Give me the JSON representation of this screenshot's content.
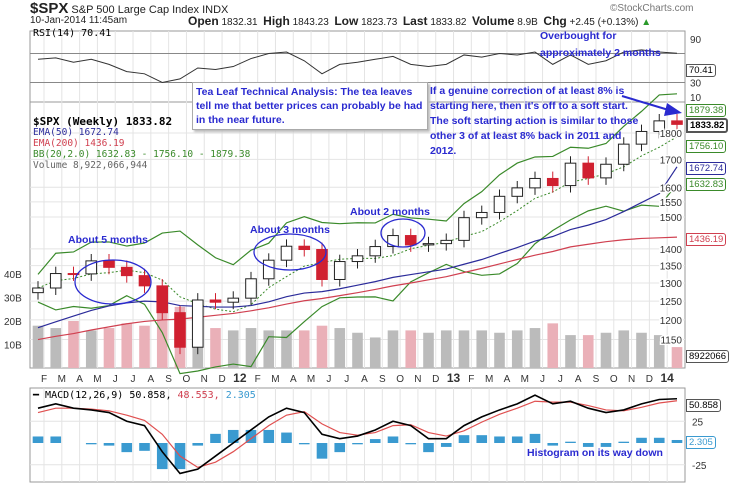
{
  "header": {
    "symbol": "$SPX",
    "name": "S&P 500 Large Cap Index",
    "exchange": "INDX",
    "brand": "©StockCharts.com",
    "date": "10-Jan-2014 11:45am",
    "open_label": "Open",
    "open": "1832.31",
    "high_label": "High",
    "high": "1843.23",
    "low_label": "Low",
    "low": "1823.73",
    "last_label": "Last",
    "last": "1833.82",
    "volume_label": "Volume",
    "volume": "8.9B",
    "chg_label": "Chg",
    "chg": "+2.45 (+0.13%)"
  },
  "rsi": {
    "legend": "RSI(14) 70.41",
    "last_tag": "70.41",
    "annotation_line1": "Overbought for",
    "annotation_line2": "approximately 2 months"
  },
  "price_legend": {
    "main": "$SPX (Weekly) 1833.82",
    "ema50": "EMA(50) 1672.74",
    "ema200": "EMA(200) 1436.19",
    "bb": "BB(20,2.0) 1632.83 - 1756.10 - 1879.38",
    "volume": "Volume 8,922,066,944"
  },
  "tags": {
    "bb_upper": "1879.38",
    "last": "1833.82",
    "bb_mid": "1756.10",
    "ema50": "1672.74",
    "bb_lower": "1632.83",
    "ema200": "1436.19",
    "volume": "8922066",
    "macd": "50.858",
    "hist": "2.305"
  },
  "annotations": {
    "tea_leaf": "Tea Leaf Technical Analysis:  The tea leaves tell me that better prices can probably be had in the near future.",
    "correction": "If a genuine correction of at least 8% is starting here, then it's off to a soft start. The soft starting action is similar to those other 3 of at least 8% back in 2011 and 2012.",
    "m5": "About 5 months",
    "m3": "About 3 months",
    "m2": "About 2 months",
    "histogram": "Histogram on its way down"
  },
  "macd": {
    "legend_a": "MACD(12,26,9) 50.858,",
    "legend_b": "48.553,",
    "legend_c": "2.305"
  },
  "colors": {
    "ema50": "#2b2b9a",
    "ema200": "#d04050",
    "bb": "#3a8a2a",
    "up": "#222",
    "down": "#d02030",
    "macd": "#000",
    "signal": "#e05050",
    "hist": "#3a9ad0",
    "annotation": "#2a2ad0"
  },
  "chart_data": {
    "type": "candlestick",
    "scale": "log",
    "grid": true,
    "x_tick_labels": [
      "F",
      "M",
      "A",
      "M",
      "J",
      "J",
      "A",
      "S",
      "O",
      "N",
      "D",
      "12",
      "F",
      "M",
      "A",
      "M",
      "J",
      "J",
      "A",
      "S",
      "O",
      "N",
      "D",
      "13",
      "F",
      "M",
      "A",
      "M",
      "J",
      "J",
      "A",
      "S",
      "O",
      "N",
      "D",
      "14"
    ],
    "price_axis_ticks": [
      1800,
      1700,
      1600,
      1550,
      1500,
      1400,
      1350,
      1300,
      1250,
      1200,
      1150
    ],
    "rsi_axis_ticks": [
      90,
      30,
      10
    ],
    "volume_axis_ticks": [
      "40B",
      "30B",
      "20B",
      "10B"
    ],
    "macd_axis_ticks": [
      25,
      -25
    ],
    "dates": [
      "2011-01",
      "2011-02",
      "2011-03",
      "2011-04",
      "2011-05",
      "2011-06",
      "2011-07",
      "2011-08",
      "2011-09",
      "2011-10",
      "2011-11",
      "2011-12",
      "2012-01",
      "2012-02",
      "2012-03",
      "2012-04",
      "2012-05",
      "2012-06",
      "2012-07",
      "2012-08",
      "2012-09",
      "2012-10",
      "2012-11",
      "2012-12",
      "2013-01",
      "2013-02",
      "2013-03",
      "2013-04",
      "2013-05",
      "2013-06",
      "2013-07",
      "2013-08",
      "2013-09",
      "2013-10",
      "2013-11",
      "2013-12",
      "2014-01"
    ],
    "close": [
      1286,
      1327,
      1326,
      1364,
      1345,
      1321,
      1292,
      1219,
      1131,
      1253,
      1247,
      1258,
      1312,
      1366,
      1408,
      1398,
      1310,
      1362,
      1379,
      1407,
      1441,
      1412,
      1416,
      1426,
      1498,
      1515,
      1569,
      1598,
      1631,
      1606,
      1686,
      1633,
      1682,
      1757,
      1806,
      1848,
      1834
    ],
    "ema50": [
      1180,
      1195,
      1210,
      1225,
      1237,
      1245,
      1250,
      1248,
      1238,
      1236,
      1234,
      1234,
      1238,
      1248,
      1262,
      1272,
      1276,
      1284,
      1294,
      1304,
      1316,
      1324,
      1332,
      1340,
      1354,
      1368,
      1386,
      1404,
      1424,
      1438,
      1460,
      1474,
      1492,
      1518,
      1548,
      1578,
      1672.74
    ],
    "ema200": [
      1150,
      1158,
      1165,
      1174,
      1182,
      1190,
      1196,
      1200,
      1202,
      1207,
      1212,
      1217,
      1224,
      1232,
      1242,
      1251,
      1257,
      1265,
      1273,
      1282,
      1292,
      1300,
      1309,
      1318,
      1330,
      1342,
      1355,
      1368,
      1381,
      1392,
      1406,
      1414,
      1422,
      1428,
      1432,
      1434,
      1436.19
    ],
    "volume_b": [
      18,
      17,
      20,
      16,
      17,
      19,
      18,
      30,
      26,
      22,
      17,
      16,
      17,
      16,
      16,
      16,
      18,
      17,
      15,
      13,
      16,
      16,
      15,
      16,
      16,
      16,
      15,
      16,
      17,
      19,
      14,
      14,
      15,
      16,
      15,
      14,
      8.9
    ],
    "rsi": [
      62,
      64,
      58,
      62,
      55,
      45,
      42,
      30,
      35,
      50,
      48,
      52,
      63,
      70,
      72,
      60,
      42,
      55,
      58,
      62,
      66,
      55,
      52,
      55,
      68,
      65,
      70,
      68,
      72,
      55,
      68,
      55,
      60,
      72,
      75,
      72,
      70.41
    ],
    "macd": [
      40,
      45,
      40,
      38,
      35,
      25,
      20,
      -10,
      -35,
      -30,
      -15,
      0,
      15,
      30,
      40,
      35,
      10,
      5,
      8,
      15,
      25,
      20,
      5,
      5,
      20,
      30,
      38,
      45,
      55,
      45,
      48,
      40,
      35,
      38,
      45,
      50,
      50.858
    ],
    "signal": [
      35,
      40,
      40,
      39,
      37,
      32,
      26,
      10,
      -15,
      -28,
      -22,
      -10,
      5,
      20,
      32,
      36,
      22,
      12,
      9,
      12,
      20,
      21,
      12,
      8,
      14,
      24,
      33,
      40,
      48,
      47,
      47,
      43,
      38,
      37,
      41,
      46,
      48.553
    ]
  }
}
